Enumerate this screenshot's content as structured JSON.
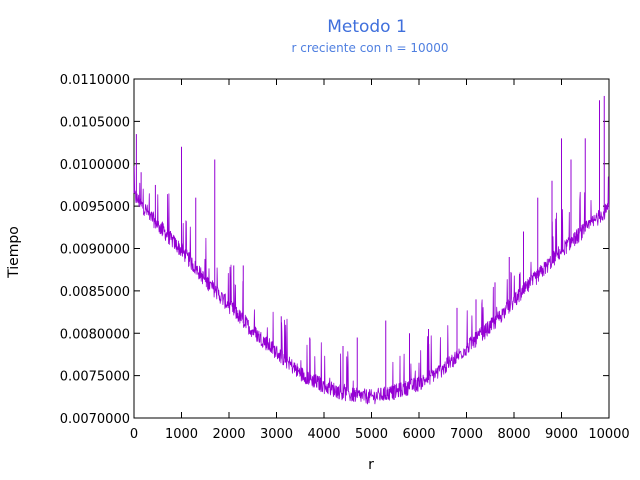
{
  "chart_data": {
    "type": "line",
    "title": "Metodo 1",
    "subtitle": "r creciente con n = 10000",
    "xlabel": "r",
    "ylabel": "Tiempo",
    "xlim": [
      0,
      10000
    ],
    "ylim": [
      0.007,
      0.011
    ],
    "xticks": [
      0,
      1000,
      2000,
      3000,
      4000,
      5000,
      6000,
      7000,
      8000,
      9000,
      10000
    ],
    "yticks": [
      "0.0070000",
      "0.0075000",
      "0.0080000",
      "0.0085000",
      "0.0090000",
      "0.0095000",
      "0.0100000",
      "0.0105000",
      "0.0110000"
    ],
    "grid": false,
    "legend": "none",
    "colors": {
      "title": "#3f6fdc",
      "subtitle": "#4f7fe0",
      "series": "#9400d3",
      "axis": "#000000"
    },
    "series": [
      {
        "description_points": [
          {
            "x": 0,
            "y": 0.0096
          },
          {
            "x": 500,
            "y": 0.00925
          },
          {
            "x": 1000,
            "y": 0.00895
          },
          {
            "x": 1500,
            "y": 0.0086
          },
          {
            "x": 2000,
            "y": 0.0083
          },
          {
            "x": 2500,
            "y": 0.008
          },
          {
            "x": 3000,
            "y": 0.00775
          },
          {
            "x": 3500,
            "y": 0.0075
          },
          {
            "x": 4000,
            "y": 0.00735
          },
          {
            "x": 4500,
            "y": 0.00725
          },
          {
            "x": 5000,
            "y": 0.00722
          },
          {
            "x": 5500,
            "y": 0.00728
          },
          {
            "x": 6000,
            "y": 0.00738
          },
          {
            "x": 6500,
            "y": 0.00755
          },
          {
            "x": 7000,
            "y": 0.0078
          },
          {
            "x": 7500,
            "y": 0.00805
          },
          {
            "x": 8000,
            "y": 0.00835
          },
          {
            "x": 8500,
            "y": 0.00865
          },
          {
            "x": 9000,
            "y": 0.00895
          },
          {
            "x": 9500,
            "y": 0.0092
          },
          {
            "x": 10000,
            "y": 0.00945
          }
        ],
        "spikes": [
          {
            "x": 50,
            "y": 0.01035
          },
          {
            "x": 150,
            "y": 0.0099
          },
          {
            "x": 450,
            "y": 0.00975
          },
          {
            "x": 1000,
            "y": 0.00965
          },
          {
            "x": 1000,
            "y": 0.0102
          },
          {
            "x": 1300,
            "y": 0.0096
          },
          {
            "x": 1700,
            "y": 0.01005
          },
          {
            "x": 2100,
            "y": 0.0088
          },
          {
            "x": 2300,
            "y": 0.0088
          },
          {
            "x": 3100,
            "y": 0.0082
          },
          {
            "x": 3700,
            "y": 0.00795
          },
          {
            "x": 4400,
            "y": 0.00785
          },
          {
            "x": 4700,
            "y": 0.00795
          },
          {
            "x": 5300,
            "y": 0.00815
          },
          {
            "x": 5800,
            "y": 0.008
          },
          {
            "x": 6200,
            "y": 0.00805
          },
          {
            "x": 6800,
            "y": 0.0083
          },
          {
            "x": 7200,
            "y": 0.0084
          },
          {
            "x": 7600,
            "y": 0.0086
          },
          {
            "x": 7900,
            "y": 0.0089
          },
          {
            "x": 8200,
            "y": 0.0092
          },
          {
            "x": 8500,
            "y": 0.0096
          },
          {
            "x": 8800,
            "y": 0.0098
          },
          {
            "x": 9000,
            "y": 0.0103
          },
          {
            "x": 9200,
            "y": 0.01005
          },
          {
            "x": 9500,
            "y": 0.0103
          },
          {
            "x": 9800,
            "y": 0.01075
          },
          {
            "x": 9900,
            "y": 0.0108
          }
        ]
      }
    ]
  }
}
